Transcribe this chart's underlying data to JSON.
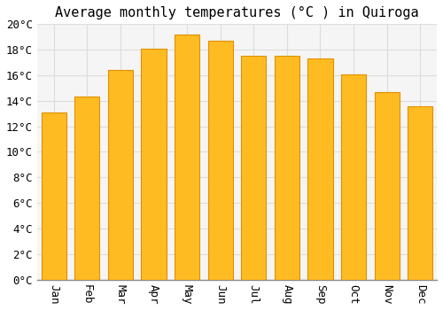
{
  "title": "Average monthly temperatures (°C ) in Quiroga",
  "months": [
    "Jan",
    "Feb",
    "Mar",
    "Apr",
    "May",
    "Jun",
    "Jul",
    "Aug",
    "Sep",
    "Oct",
    "Nov",
    "Dec"
  ],
  "values": [
    13.1,
    14.3,
    16.4,
    18.1,
    19.2,
    18.7,
    17.5,
    17.5,
    17.3,
    16.1,
    14.7,
    13.6
  ],
  "bar_color": "#FFBB22",
  "bar_edge_color": "#E09000",
  "background_color": "#FFFFFF",
  "plot_bg_color": "#F5F5F5",
  "grid_color": "#DDDDDD",
  "ylim": [
    0,
    20
  ],
  "ytick_step": 2,
  "title_fontsize": 11,
  "tick_fontsize": 9,
  "font_family": "monospace"
}
